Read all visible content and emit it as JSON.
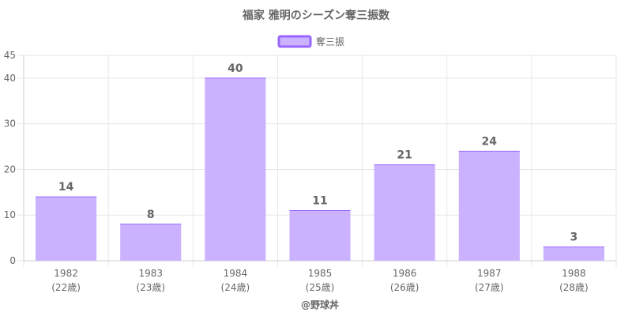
{
  "chart_data": {
    "type": "bar",
    "title": "福家 雅明のシーズン奪三振数",
    "categories": [
      "1982",
      "1983",
      "1984",
      "1985",
      "1986",
      "1987",
      "1988"
    ],
    "category_sublabels": [
      "(22歳)",
      "(23歳)",
      "(24歳)",
      "(25歳)",
      "(26歳)",
      "(27歳)",
      "(28歳)"
    ],
    "series": [
      {
        "name": "奪三振",
        "values": [
          14,
          8,
          40,
          11,
          21,
          24,
          3
        ]
      }
    ],
    "ylim": [
      0,
      45
    ],
    "yticks": [
      0,
      10,
      20,
      30,
      40,
      45
    ],
    "grid": true,
    "legend_position": "top-center",
    "data_labels": true,
    "colors": {
      "bar_fill": "#cbb2fe",
      "bar_border": "#9966ff",
      "grid": "#e6e6e6",
      "axis": "#cccccc",
      "text": "#666666"
    }
  },
  "credit": "@野球丼"
}
